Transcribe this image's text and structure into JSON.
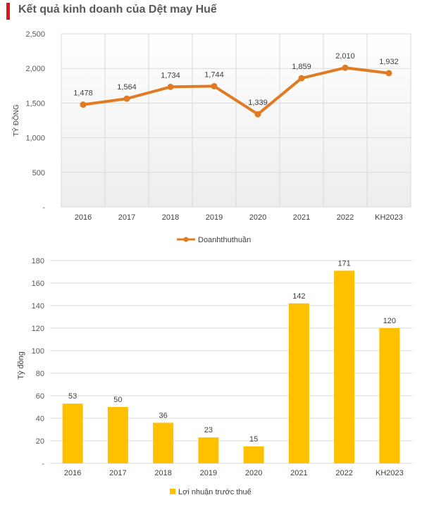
{
  "title": "Kết quả kinh doanh của Dệt may Huế",
  "colors": {
    "title_bar": "#d7191c",
    "line": "#e07b24",
    "bar": "#ffc000"
  },
  "chart_data": [
    {
      "type": "line",
      "title": "",
      "ylabel": "TỶ ĐỒNG",
      "categories": [
        "2016",
        "2017",
        "2018",
        "2019",
        "2020",
        "2021",
        "2022",
        "KH2023"
      ],
      "ylim": [
        0,
        2500
      ],
      "yticks": [
        "-",
        "500",
        "1,000",
        "1,500",
        "2,000",
        "2,500"
      ],
      "grid": true,
      "legend": "bottom",
      "series": [
        {
          "name": "Doanhthuthuần",
          "values": [
            1478,
            1564,
            1734,
            1744,
            1339,
            1859,
            2010,
            1932
          ],
          "labels": [
            "1,478",
            "1,564",
            "1,734",
            "1,744",
            "1,339",
            "1,859",
            "2,010",
            "1,932"
          ]
        }
      ]
    },
    {
      "type": "bar",
      "title": "",
      "ylabel": "Tỷ đồng",
      "categories": [
        "2016",
        "2017",
        "2018",
        "2019",
        "2020",
        "2021",
        "2022",
        "KH2023"
      ],
      "ylim": [
        0,
        180
      ],
      "yticks": [
        "-",
        "20",
        "40",
        "60",
        "80",
        "100",
        "120",
        "140",
        "160",
        "180"
      ],
      "grid": true,
      "legend": "bottom",
      "series": [
        {
          "name": "Lợi nhuận trước thuế",
          "values": [
            53,
            50,
            36,
            23,
            15,
            142,
            171,
            120
          ],
          "labels": [
            "53",
            "50",
            "36",
            "23",
            "15",
            "142",
            "171",
            "120"
          ]
        }
      ]
    }
  ]
}
